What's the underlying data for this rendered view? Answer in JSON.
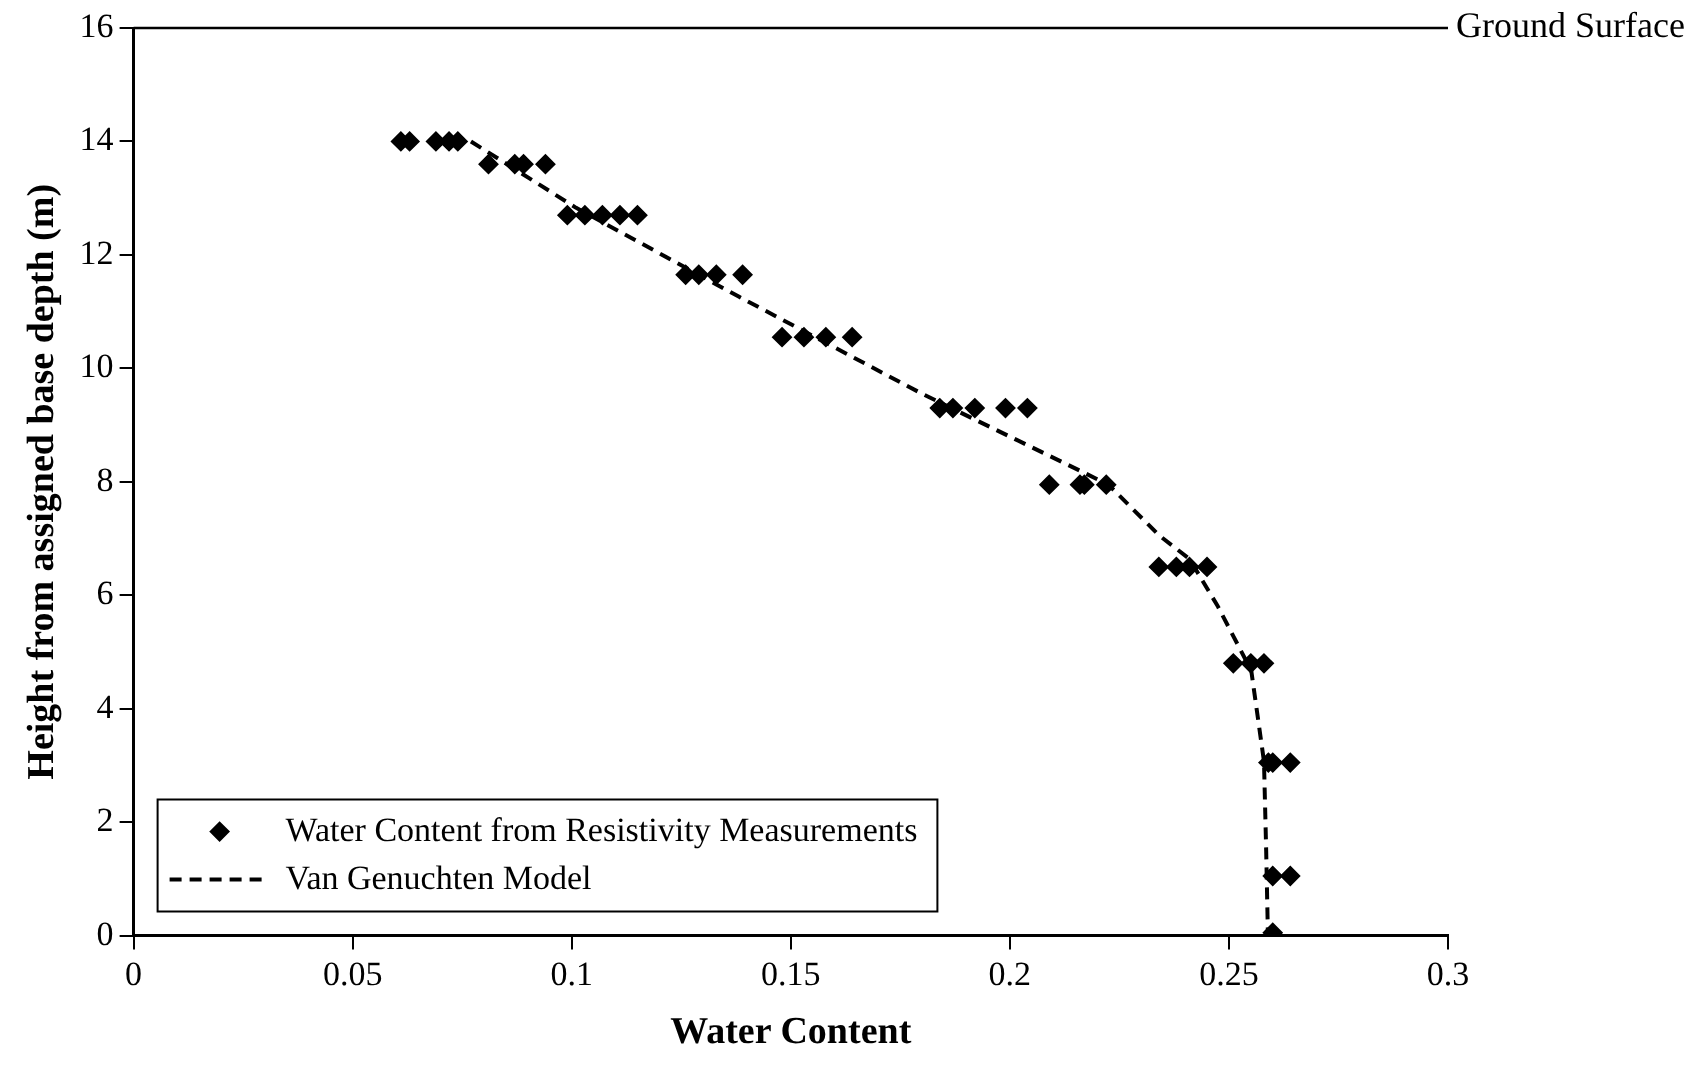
{
  "chart_data": {
    "type": "scatter",
    "xlabel": "Water Content",
    "ylabel": "Height from assigned base depth (m)",
    "xlim": [
      0,
      0.3
    ],
    "xticks": [
      0,
      0.05,
      0.1,
      0.15,
      0.2,
      0.25,
      0.3
    ],
    "ylim": [
      0,
      16
    ],
    "yticks": [
      0,
      2,
      4,
      6,
      8,
      10,
      12,
      14,
      16
    ],
    "grid": false,
    "legend": "bottom left",
    "ref_lines": [
      {
        "axis": "y",
        "value": 16,
        "label": "Ground Surface",
        "color": "#000000"
      }
    ],
    "series": [
      {
        "name": "Water Content from Resistivity Measurements",
        "marker": "diamond",
        "color": "#000000",
        "x": [
          0.061,
          0.063,
          0.069,
          0.072,
          0.074,
          0.081,
          0.087,
          0.089,
          0.094,
          0.099,
          0.103,
          0.107,
          0.111,
          0.115,
          0.126,
          0.129,
          0.133,
          0.139,
          0.148,
          0.153,
          0.158,
          0.164,
          0.184,
          0.187,
          0.192,
          0.199,
          0.204,
          0.209,
          0.216,
          0.217,
          0.222,
          0.234,
          0.238,
          0.241,
          0.245,
          0.251,
          0.255,
          0.258,
          0.259,
          0.26,
          0.264,
          0.26,
          0.264,
          0.26
        ],
        "values": [
          14,
          14,
          14,
          14,
          14,
          13.6,
          13.6,
          13.6,
          13.6,
          12.7,
          12.7,
          12.7,
          12.7,
          12.7,
          11.65,
          11.65,
          11.65,
          11.65,
          10.55,
          10.55,
          10.55,
          10.55,
          9.3,
          9.3,
          9.3,
          9.3,
          9.3,
          7.95,
          7.95,
          7.95,
          7.95,
          6.5,
          6.5,
          6.5,
          6.5,
          4.8,
          4.8,
          4.8,
          3.05,
          3.05,
          3.05,
          1.05,
          1.05,
          0.05
        ]
      },
      {
        "name": "Van Genuchten Model",
        "type": "line",
        "marker": "none",
        "line_style": "dashed",
        "color": "#000000",
        "x": [
          0.077,
          0.101,
          0.138,
          0.18,
          0.2225,
          0.234,
          0.241,
          0.2475,
          0.2551,
          0.258,
          0.2585,
          0.2589
        ],
        "values": [
          14,
          12.83,
          11.27,
          9.55,
          7.95,
          7.06,
          6.64,
          5.8,
          4.67,
          3.07,
          1.5,
          0
        ]
      }
    ]
  }
}
